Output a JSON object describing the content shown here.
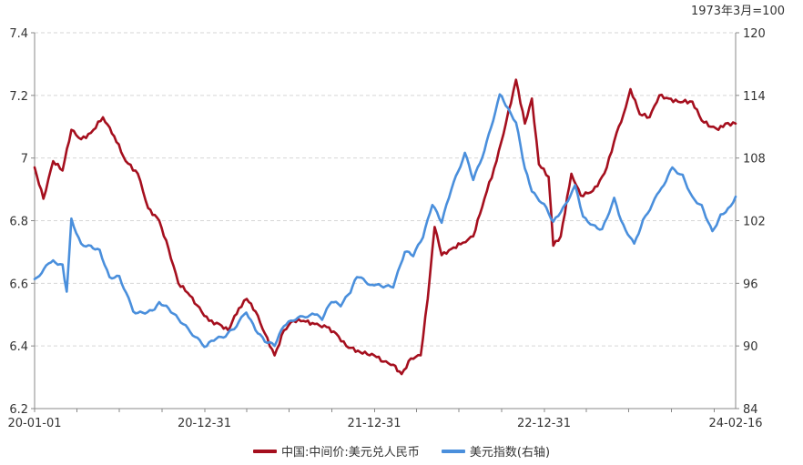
{
  "chart_data": {
    "type": "line",
    "unit_note": "1973年3月=100",
    "x_tick_labels": [
      "20-01-01",
      "20-12-31",
      "21-12-31",
      "22-12-31",
      "24-02-16"
    ],
    "x_range": [
      "2020-01-01",
      "2024-02-16"
    ],
    "y_left": {
      "range": [
        6.2,
        7.4
      ],
      "tick_labels": [
        "6.2",
        "6.4",
        "6.6",
        "6.8",
        "7",
        "7.2",
        "7.4"
      ]
    },
    "y_right": {
      "range": [
        84,
        120
      ],
      "tick_labels": [
        "84",
        "90",
        "96",
        "102",
        "108",
        "114",
        "120"
      ]
    },
    "grid": "horizontal dashed",
    "legend_position": "bottom",
    "series": [
      {
        "name": "中国:中间价:美元兑人民币",
        "axis": "left",
        "color": "#a50f1e",
        "points": [
          [
            "2020-01-01",
            6.97
          ],
          [
            "2020-01-20",
            6.87
          ],
          [
            "2020-02-10",
            6.99
          ],
          [
            "2020-03-01",
            6.96
          ],
          [
            "2020-03-20",
            7.09
          ],
          [
            "2020-04-10",
            7.06
          ],
          [
            "2020-05-01",
            7.08
          ],
          [
            "2020-05-27",
            7.13
          ],
          [
            "2020-06-20",
            7.07
          ],
          [
            "2020-07-15",
            6.99
          ],
          [
            "2020-08-10",
            6.95
          ],
          [
            "2020-09-01",
            6.84
          ],
          [
            "2020-09-25",
            6.8
          ],
          [
            "2020-10-15",
            6.71
          ],
          [
            "2020-11-05",
            6.6
          ],
          [
            "2020-11-25",
            6.57
          ],
          [
            "2020-12-15",
            6.53
          ],
          [
            "2021-01-10",
            6.48
          ],
          [
            "2021-02-01",
            6.47
          ],
          [
            "2021-02-20",
            6.45
          ],
          [
            "2021-03-15",
            6.52
          ],
          [
            "2021-04-01",
            6.55
          ],
          [
            "2021-04-20",
            6.51
          ],
          [
            "2021-05-10",
            6.44
          ],
          [
            "2021-05-31",
            6.37
          ],
          [
            "2021-06-20",
            6.45
          ],
          [
            "2021-07-10",
            6.48
          ],
          [
            "2021-08-01",
            6.48
          ],
          [
            "2021-08-25",
            6.47
          ],
          [
            "2021-09-20",
            6.46
          ],
          [
            "2021-10-10",
            6.44
          ],
          [
            "2021-11-01",
            6.4
          ],
          [
            "2021-12-01",
            6.38
          ],
          [
            "2021-12-31",
            6.37
          ],
          [
            "2022-01-20",
            6.35
          ],
          [
            "2022-02-10",
            6.34
          ],
          [
            "2022-02-28",
            6.31
          ],
          [
            "2022-03-20",
            6.36
          ],
          [
            "2022-04-10",
            6.37
          ],
          [
            "2022-04-25",
            6.55
          ],
          [
            "2022-05-10",
            6.78
          ],
          [
            "2022-05-25",
            6.69
          ],
          [
            "2022-06-15",
            6.71
          ],
          [
            "2022-07-10",
            6.73
          ],
          [
            "2022-08-01",
            6.75
          ],
          [
            "2022-08-25",
            6.87
          ],
          [
            "2022-09-20",
            6.99
          ],
          [
            "2022-10-10",
            7.11
          ],
          [
            "2022-11-01",
            7.25
          ],
          [
            "2022-11-20",
            7.11
          ],
          [
            "2022-12-05",
            7.19
          ],
          [
            "2022-12-20",
            6.98
          ],
          [
            "2023-01-10",
            6.94
          ],
          [
            "2023-01-20",
            6.72
          ],
          [
            "2023-02-05",
            6.75
          ],
          [
            "2023-02-28",
            6.95
          ],
          [
            "2023-03-20",
            6.88
          ],
          [
            "2023-04-10",
            6.89
          ],
          [
            "2023-04-25",
            6.91
          ],
          [
            "2023-05-15",
            6.97
          ],
          [
            "2023-06-05",
            7.08
          ],
          [
            "2023-06-20",
            7.14
          ],
          [
            "2023-07-05",
            7.22
          ],
          [
            "2023-07-25",
            7.14
          ],
          [
            "2023-08-15",
            7.13
          ],
          [
            "2023-09-05",
            7.2
          ],
          [
            "2023-09-25",
            7.19
          ],
          [
            "2023-10-15",
            7.18
          ],
          [
            "2023-11-15",
            7.18
          ],
          [
            "2023-12-05",
            7.12
          ],
          [
            "2023-12-25",
            7.1
          ],
          [
            "2024-01-10",
            7.09
          ],
          [
            "2024-01-25",
            7.11
          ],
          [
            "2024-02-16",
            7.11
          ]
        ]
      },
      {
        "name": "美元指数(右轴)",
        "axis": "right",
        "color": "#4a8fdc",
        "points": [
          [
            "2020-01-01",
            96.4
          ],
          [
            "2020-02-10",
            98.2
          ],
          [
            "2020-03-01",
            97.8
          ],
          [
            "2020-03-10",
            95.2
          ],
          [
            "2020-03-20",
            102.2
          ],
          [
            "2020-04-10",
            99.8
          ],
          [
            "2020-05-01",
            99.6
          ],
          [
            "2020-05-20",
            99.2
          ],
          [
            "2020-06-10",
            96.6
          ],
          [
            "2020-07-01",
            96.7
          ],
          [
            "2020-07-31",
            93.3
          ],
          [
            "2020-08-20",
            93.2
          ],
          [
            "2020-09-10",
            93.4
          ],
          [
            "2020-09-25",
            94.2
          ],
          [
            "2020-10-15",
            93.6
          ],
          [
            "2020-11-05",
            92.6
          ],
          [
            "2020-12-01",
            91.3
          ],
          [
            "2020-12-31",
            89.9
          ],
          [
            "2021-01-15",
            90.5
          ],
          [
            "2021-02-10",
            90.8
          ],
          [
            "2021-03-05",
            91.6
          ],
          [
            "2021-03-31",
            93.2
          ],
          [
            "2021-04-20",
            91.5
          ],
          [
            "2021-05-10",
            90.4
          ],
          [
            "2021-05-31",
            90.0
          ],
          [
            "2021-06-20",
            91.9
          ],
          [
            "2021-07-10",
            92.4
          ],
          [
            "2021-08-20",
            93.1
          ],
          [
            "2021-09-10",
            92.5
          ],
          [
            "2021-09-30",
            94.2
          ],
          [
            "2021-10-20",
            93.8
          ],
          [
            "2021-11-10",
            95.1
          ],
          [
            "2021-11-24",
            96.6
          ],
          [
            "2021-12-31",
            95.8
          ],
          [
            "2022-01-20",
            95.6
          ],
          [
            "2022-02-10",
            95.6
          ],
          [
            "2022-03-07",
            99.0
          ],
          [
            "2022-03-25",
            98.6
          ],
          [
            "2022-04-15",
            100.4
          ],
          [
            "2022-05-05",
            103.5
          ],
          [
            "2022-05-25",
            101.8
          ],
          [
            "2022-06-15",
            105.0
          ],
          [
            "2022-07-14",
            108.5
          ],
          [
            "2022-08-01",
            105.9
          ],
          [
            "2022-08-25",
            108.7
          ],
          [
            "2022-09-27",
            114.1
          ],
          [
            "2022-10-10",
            113.0
          ],
          [
            "2022-11-01",
            111.4
          ],
          [
            "2022-11-20",
            107.0
          ],
          [
            "2022-12-05",
            104.8
          ],
          [
            "2022-12-31",
            103.6
          ],
          [
            "2023-01-20",
            101.9
          ],
          [
            "2023-02-05",
            102.8
          ],
          [
            "2023-03-08",
            105.4
          ],
          [
            "2023-03-25",
            102.4
          ],
          [
            "2023-04-15",
            101.6
          ],
          [
            "2023-05-05",
            101.2
          ],
          [
            "2023-05-31",
            104.2
          ],
          [
            "2023-06-15",
            102.0
          ],
          [
            "2023-07-13",
            99.8
          ],
          [
            "2023-08-01",
            102.1
          ],
          [
            "2023-09-05",
            104.8
          ],
          [
            "2023-10-03",
            107.1
          ],
          [
            "2023-10-25",
            106.4
          ],
          [
            "2023-11-15",
            104.3
          ],
          [
            "2023-12-05",
            103.5
          ],
          [
            "2023-12-28",
            101.0
          ],
          [
            "2024-01-15",
            102.6
          ],
          [
            "2024-01-31",
            103.2
          ],
          [
            "2024-02-16",
            104.3
          ]
        ]
      }
    ]
  }
}
